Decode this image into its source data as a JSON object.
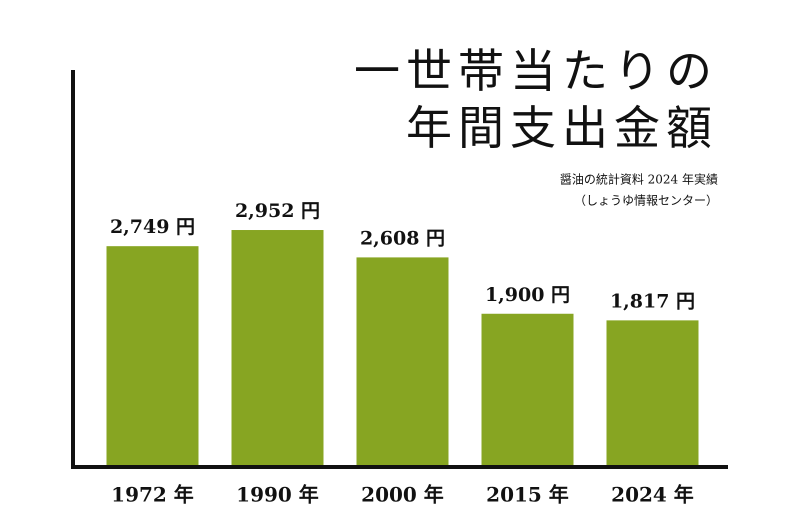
{
  "chart_data": {
    "type": "bar",
    "title": [
      "一世帯当たりの",
      "年間支出金額"
    ],
    "source": [
      "醤油の統計資料 2024 年実績",
      "（しょうゆ情報センター）"
    ],
    "categories": [
      "1972 年",
      "1990 年",
      "2000 年",
      "2015 年",
      "2024 年"
    ],
    "values": [
      2749,
      2952,
      2608,
      1900,
      1817
    ],
    "value_labels": [
      "2,749 円",
      "2,952 円",
      "2,608 円",
      "1,900 円",
      "1,817 円"
    ],
    "color": "#87a522",
    "ylim": [
      0,
      5000
    ]
  }
}
